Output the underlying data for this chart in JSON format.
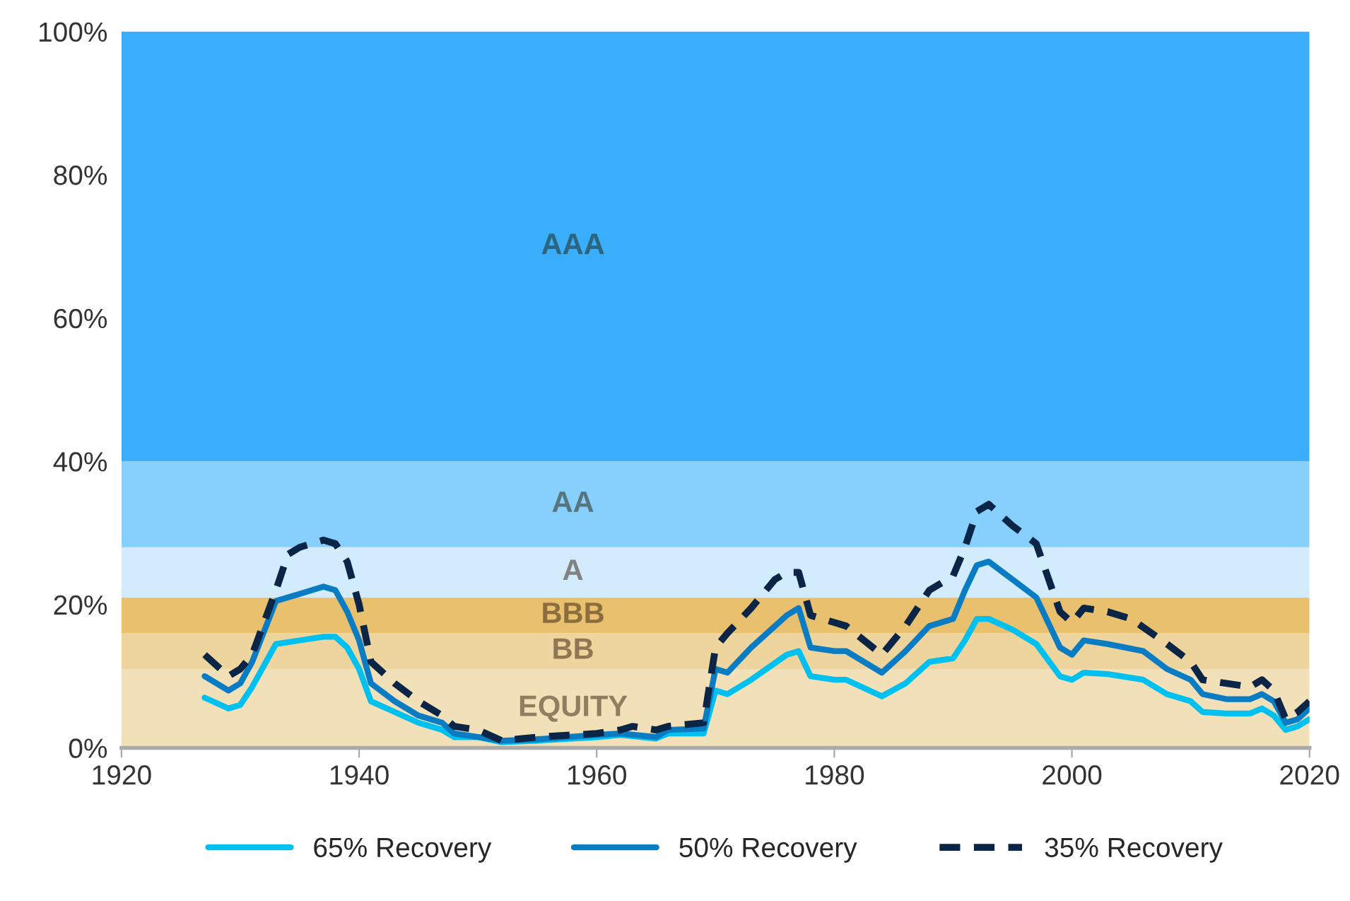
{
  "chart_data": {
    "type": "line",
    "xlim": [
      1920,
      2020
    ],
    "xticks": [
      1920,
      1940,
      1960,
      1980,
      2000,
      2020
    ],
    "ylim": [
      0,
      100
    ],
    "yticks": [
      {
        "value": 0,
        "label": "0%"
      },
      {
        "value": 20,
        "label": "20%"
      },
      {
        "value": 40,
        "label": "40%"
      },
      {
        "value": 60,
        "label": "60%"
      },
      {
        "value": 80,
        "label": "80%"
      },
      {
        "value": 100,
        "label": "100%"
      }
    ],
    "bands": [
      {
        "axis": "y",
        "from": 0,
        "to": 11,
        "label": "EQUITY",
        "color": "#f2e0b8"
      },
      {
        "axis": "y",
        "from": 11,
        "to": 16,
        "label": "BB",
        "color": "#eed49d"
      },
      {
        "axis": "y",
        "from": 16,
        "to": 21,
        "label": "BBB",
        "color": "#e8c06e"
      },
      {
        "axis": "y",
        "from": 21,
        "to": 28,
        "label": "A",
        "color": "#d2ecfe"
      },
      {
        "axis": "y",
        "from": 28,
        "to": 40,
        "label": "AA",
        "color": "#87d0fd"
      },
      {
        "axis": "y",
        "from": 40,
        "to": 100,
        "label": "AAA",
        "color": "#3aaefb"
      }
    ],
    "legend": "bottom",
    "grid": false,
    "series": [
      {
        "name": "65% Recovery",
        "color": "#00c0f0",
        "line_style": "solid",
        "x": [
          1927,
          1929,
          1930,
          1931,
          1933,
          1935,
          1937,
          1938,
          1939,
          1940,
          1941,
          1943,
          1945,
          1947,
          1948,
          1950,
          1952,
          1955,
          1960,
          1962,
          1965,
          1966,
          1969,
          1970,
          1971,
          1973,
          1976,
          1977,
          1978,
          1980,
          1981,
          1984,
          1986,
          1988,
          1990,
          1991,
          1992,
          1993,
          1995,
          1997,
          1999,
          2000,
          2001,
          2003,
          2006,
          2008,
          2010,
          2011,
          2013,
          2015,
          2016,
          2017,
          2018,
          2019,
          2020
        ],
        "values": [
          7,
          5.5,
          6,
          8.5,
          14.5,
          15,
          15.5,
          15.5,
          14,
          11,
          6.5,
          5,
          3.5,
          2.5,
          1.5,
          1.5,
          0.8,
          1,
          1.5,
          1.8,
          1.3,
          2,
          2,
          8,
          7.5,
          9.5,
          13,
          13.5,
          10,
          9.5,
          9.5,
          7.2,
          9,
          12,
          12.5,
          15,
          18,
          18,
          16.5,
          14.5,
          10,
          9.5,
          10.5,
          10.3,
          9.5,
          7.5,
          6.5,
          5,
          4.8,
          4.8,
          5.5,
          4.5,
          2.5,
          3,
          4
        ]
      },
      {
        "name": "50% Recovery",
        "color": "#0a7cc4",
        "line_style": "solid",
        "x": [
          1927,
          1929,
          1930,
          1931,
          1933,
          1935,
          1937,
          1938,
          1939,
          1940,
          1941,
          1943,
          1945,
          1947,
          1948,
          1950,
          1952,
          1955,
          1960,
          1962,
          1965,
          1966,
          1969,
          1970,
          1971,
          1973,
          1976,
          1977,
          1978,
          1980,
          1981,
          1984,
          1986,
          1988,
          1990,
          1991,
          1992,
          1993,
          1995,
          1997,
          1999,
          2000,
          2001,
          2003,
          2006,
          2008,
          2010,
          2011,
          2013,
          2015,
          2016,
          2017,
          2018,
          2019,
          2020
        ],
        "values": [
          10,
          8,
          9,
          12,
          20.5,
          21.5,
          22.5,
          22,
          19,
          15,
          9,
          6.5,
          4.5,
          3.5,
          2,
          1.5,
          1,
          1.2,
          1.8,
          2,
          1.5,
          2.5,
          2.7,
          11,
          10.5,
          14,
          18.5,
          19.5,
          14,
          13.5,
          13.5,
          10.5,
          13.5,
          17,
          18,
          22,
          25.5,
          26,
          23.5,
          21,
          14,
          13,
          15,
          14.5,
          13.5,
          11,
          9.5,
          7.5,
          6.8,
          6.8,
          7.5,
          6.5,
          3.5,
          4,
          5.5
        ]
      },
      {
        "name": "35% Recovery",
        "color": "#0a2545",
        "line_style": "dashed",
        "x": [
          1927,
          1929,
          1930,
          1931,
          1933,
          1934,
          1935,
          1937,
          1938,
          1939,
          1940,
          1941,
          1943,
          1945,
          1947,
          1948,
          1950,
          1952,
          1955,
          1960,
          1962,
          1963,
          1965,
          1966,
          1969,
          1970,
          1971,
          1973,
          1975,
          1976,
          1977,
          1978,
          1980,
          1981,
          1984,
          1986,
          1988,
          1990,
          1991,
          1992,
          1993,
          1995,
          1997,
          1999,
          2000,
          2001,
          2003,
          2005,
          2008,
          2010,
          2011,
          2013,
          2015,
          2016,
          2017,
          2018,
          2019,
          2020
        ],
        "values": [
          13,
          10,
          11,
          13,
          22,
          27,
          28,
          29,
          28.5,
          26,
          20,
          12,
          9,
          6.5,
          4.5,
          3,
          2.5,
          1,
          1.5,
          2,
          2.5,
          3,
          2.5,
          3,
          3.5,
          14,
          16,
          19.5,
          23.5,
          24.5,
          24.5,
          18.5,
          17.5,
          17,
          13,
          17,
          22,
          24,
          28,
          33,
          34,
          31,
          28.5,
          19,
          17.5,
          19.5,
          19,
          18,
          14.5,
          12,
          9.5,
          9,
          8.5,
          9.5,
          8,
          4,
          5,
          6.5
        ]
      }
    ]
  }
}
